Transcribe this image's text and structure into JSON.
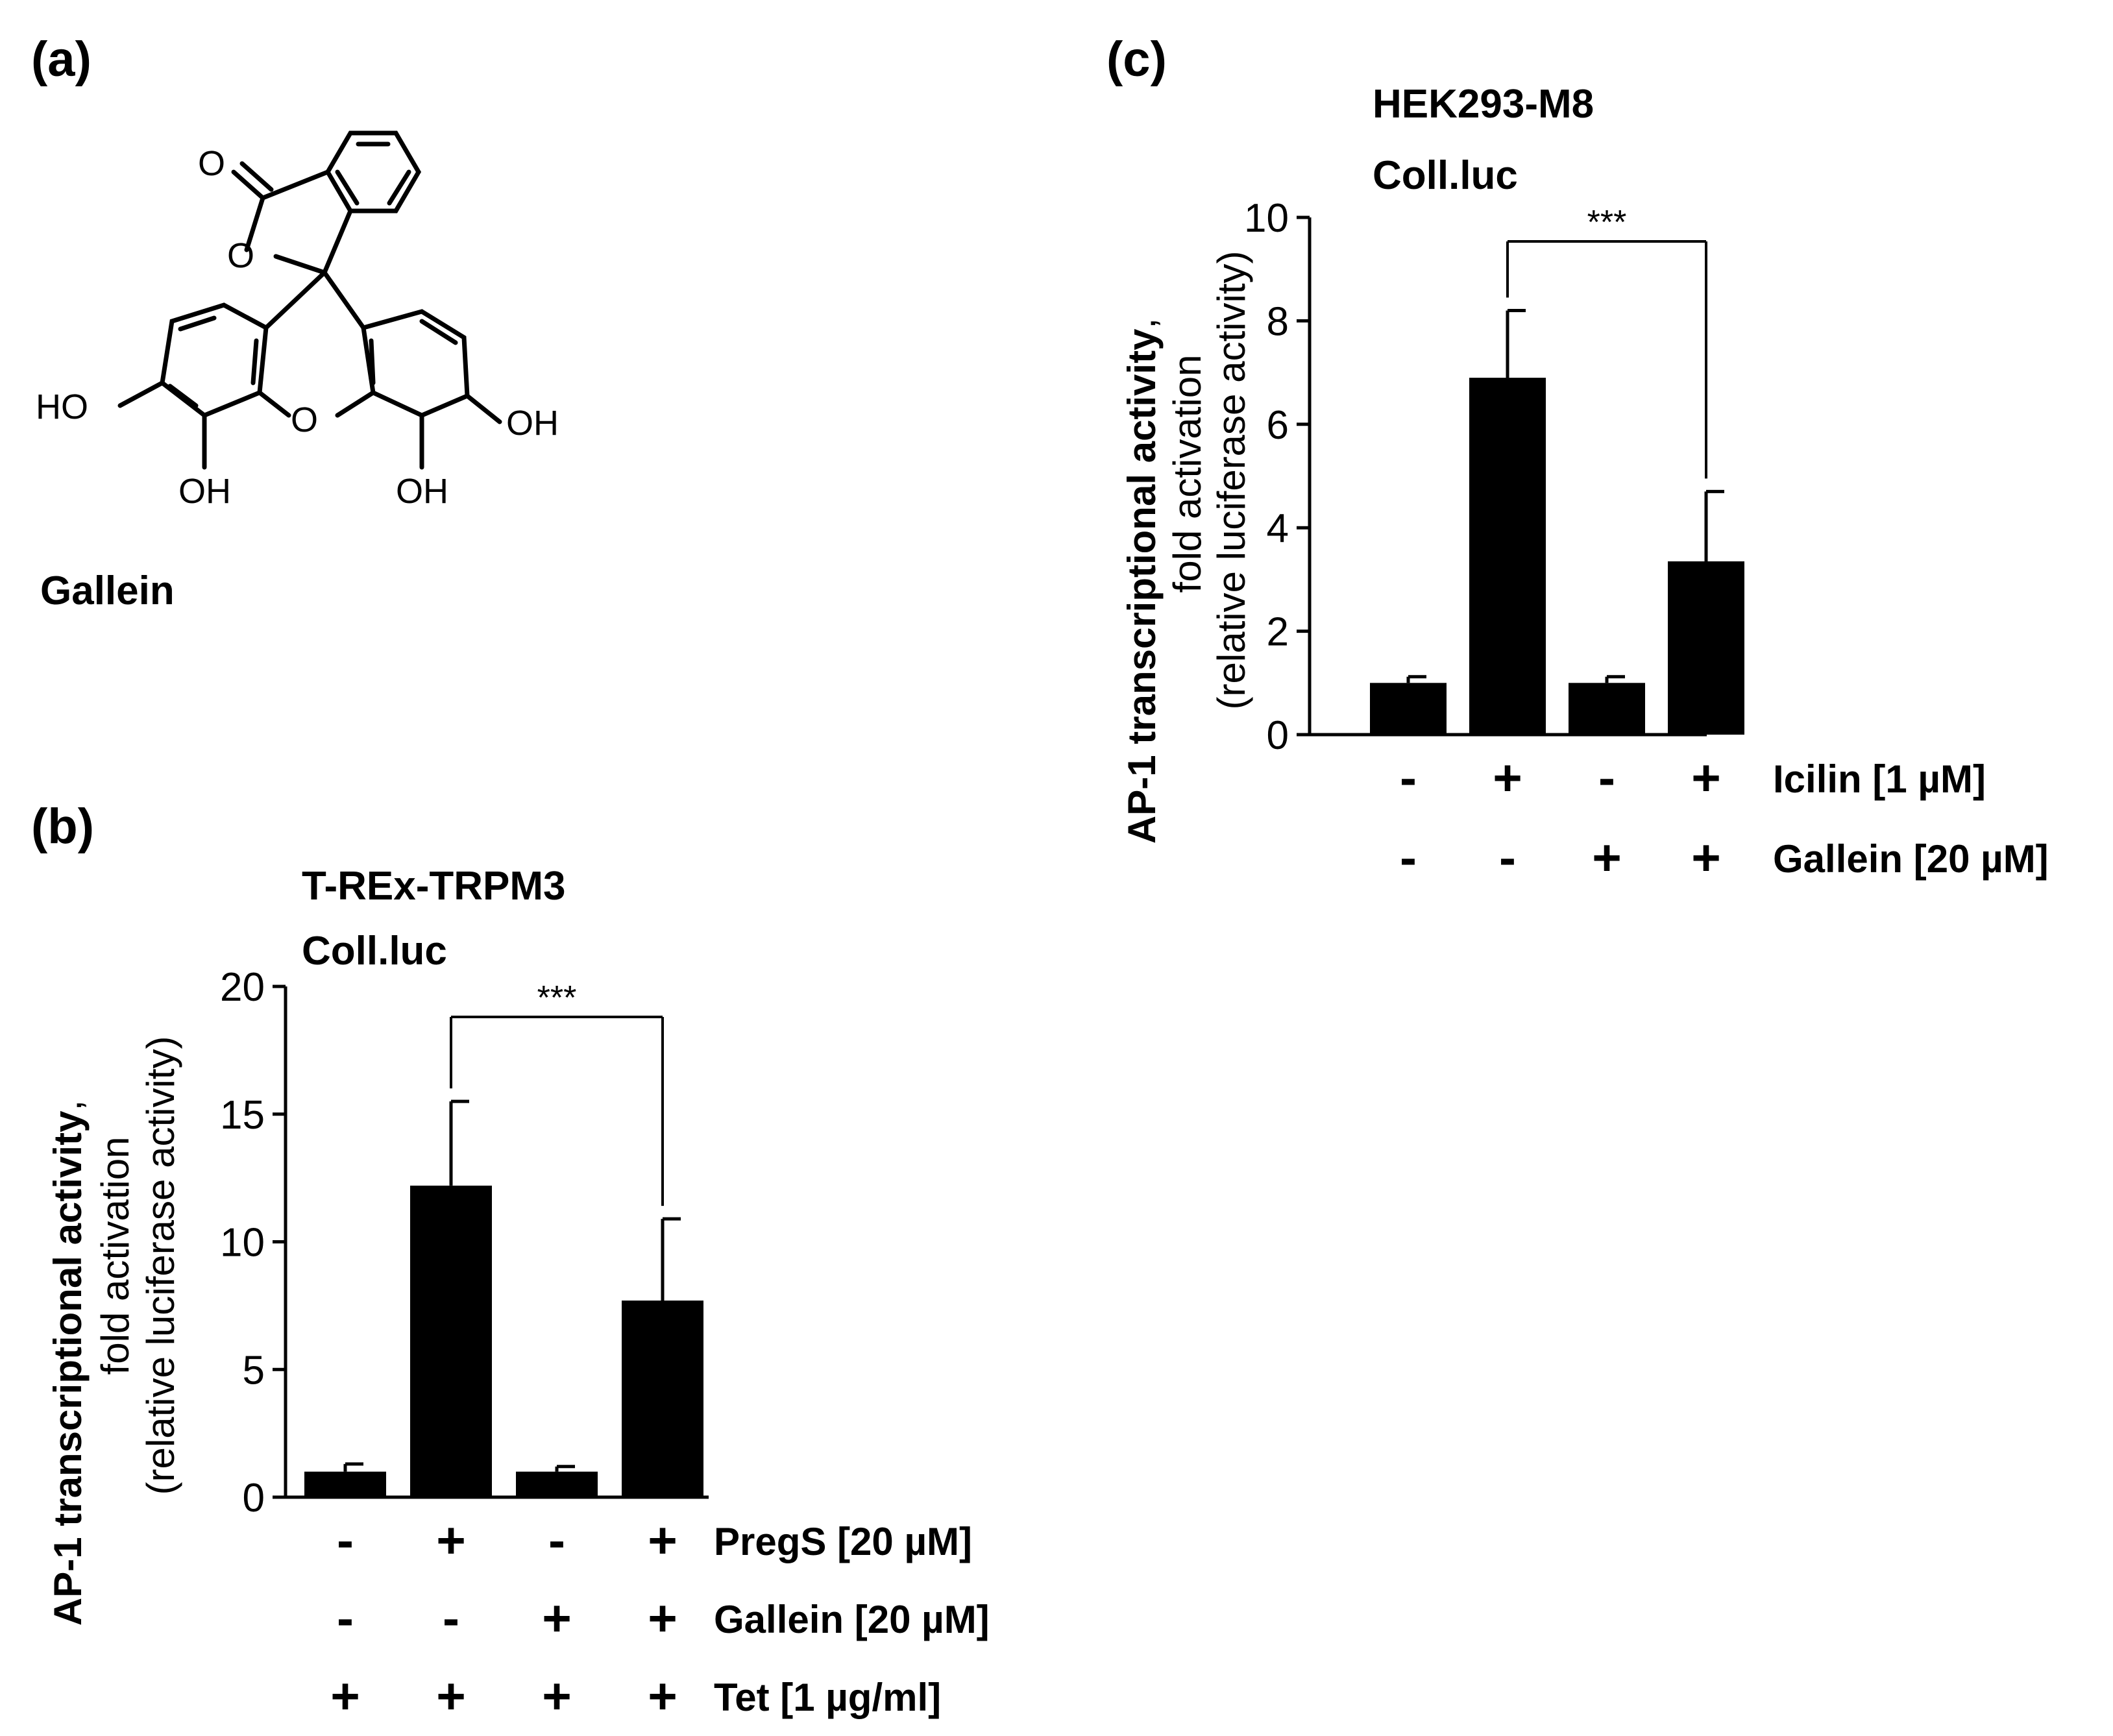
{
  "panel_a": {
    "label": "(a)",
    "compound_name": "Gallein",
    "atoms": {
      "carbonyl_o": "O",
      "lactone_o": "O",
      "xanthene_o": "O",
      "oh_left": "HO",
      "oh_bottom_left": "OH",
      "oh_bottom_right": "OH",
      "oh_right": "OH"
    }
  },
  "panel_b": {
    "label": "(b)",
    "line1": "T-REx-TRPM3",
    "line2": "Coll.luc",
    "ylabel_bold": "AP-1 transcriptional activity",
    "ylabel_comma": ",",
    "ylabel_line2": "fold activation",
    "ylabel_line3": "(relative luciferase activity)",
    "significance": "***",
    "treatments": [
      {
        "name": "PregS [20 µM]",
        "signs": [
          "-",
          "+",
          "-",
          "+"
        ]
      },
      {
        "name": "Gallein [20 µM]",
        "signs": [
          "-",
          "-",
          "+",
          "+"
        ]
      },
      {
        "name": "Tet [1 µg/ml]",
        "signs": [
          "+",
          "+",
          "+",
          "+"
        ]
      }
    ]
  },
  "panel_c": {
    "label": "(c)",
    "line1": "HEK293-M8",
    "line2": "Coll.luc",
    "ylabel_bold": "AP-1 transcriptional activity",
    "ylabel_comma": ",",
    "ylabel_line2": "fold activation",
    "ylabel_line3": "(relative luciferase activity)",
    "significance": "***",
    "treatments": [
      {
        "name": "Icilin [1 µM]",
        "signs": [
          "-",
          "+",
          "-",
          "+"
        ]
      },
      {
        "name": "Gallein [20 µM]",
        "signs": [
          "-",
          "-",
          "+",
          "+"
        ]
      }
    ]
  },
  "chart_data": [
    {
      "type": "bar",
      "panel": "b",
      "categories": [
        "1",
        "2",
        "3",
        "4"
      ],
      "values": [
        1.0,
        12.2,
        1.0,
        7.7
      ],
      "errors": [
        0.3,
        3.3,
        0.2,
        3.2
      ],
      "ylim": [
        0,
        20
      ],
      "yticks": [
        "0",
        "5",
        "10",
        "15",
        "20"
      ],
      "significance": {
        "from": 1,
        "to": 3,
        "label": "***"
      },
      "grid": false,
      "color": "#000000"
    },
    {
      "type": "bar",
      "panel": "c",
      "categories": [
        "1",
        "2",
        "3",
        "4"
      ],
      "values": [
        1.0,
        6.9,
        1.0,
        3.35
      ],
      "errors": [
        0.12,
        1.3,
        0.12,
        1.35
      ],
      "ylim": [
        0,
        10
      ],
      "yticks": [
        "0",
        "2",
        "4",
        "6",
        "8",
        "10"
      ],
      "significance": {
        "from": 1,
        "to": 3,
        "label": "***"
      },
      "grid": false,
      "color": "#000000"
    }
  ]
}
